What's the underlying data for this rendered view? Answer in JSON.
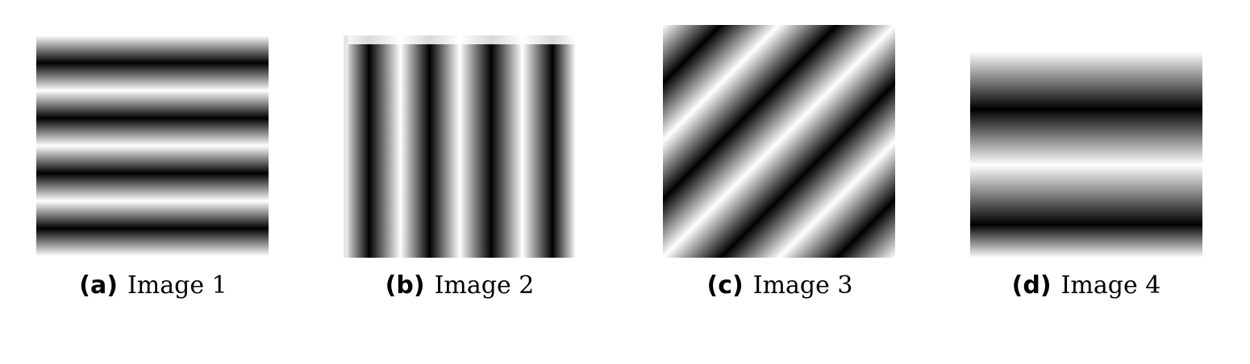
{
  "figure": {
    "panels": [
      {
        "label": "(a)",
        "title": "Image 1"
      },
      {
        "label": "(b)",
        "title": "Image 2"
      },
      {
        "label": "(c)",
        "title": "Image 3"
      },
      {
        "label": "(d)",
        "title": "Image 4"
      }
    ]
  },
  "patterns": {
    "image1": {
      "orientation": "horizontal",
      "dark_bands": 4,
      "colors": {
        "dark": "#000000",
        "light": "#ffffff"
      }
    },
    "image2": {
      "orientation": "vertical",
      "dark_bands": 4,
      "colors": {
        "dark": "#000000",
        "light": "#ffffff"
      }
    },
    "image3": {
      "orientation": "diagonal",
      "dark_bands": 4,
      "colors": {
        "dark": "#000000",
        "light": "#ffffff"
      }
    },
    "image4": {
      "orientation": "horizontal",
      "dark_bands": 2,
      "colors": {
        "dark": "#000000",
        "light": "#ffffff"
      }
    }
  }
}
